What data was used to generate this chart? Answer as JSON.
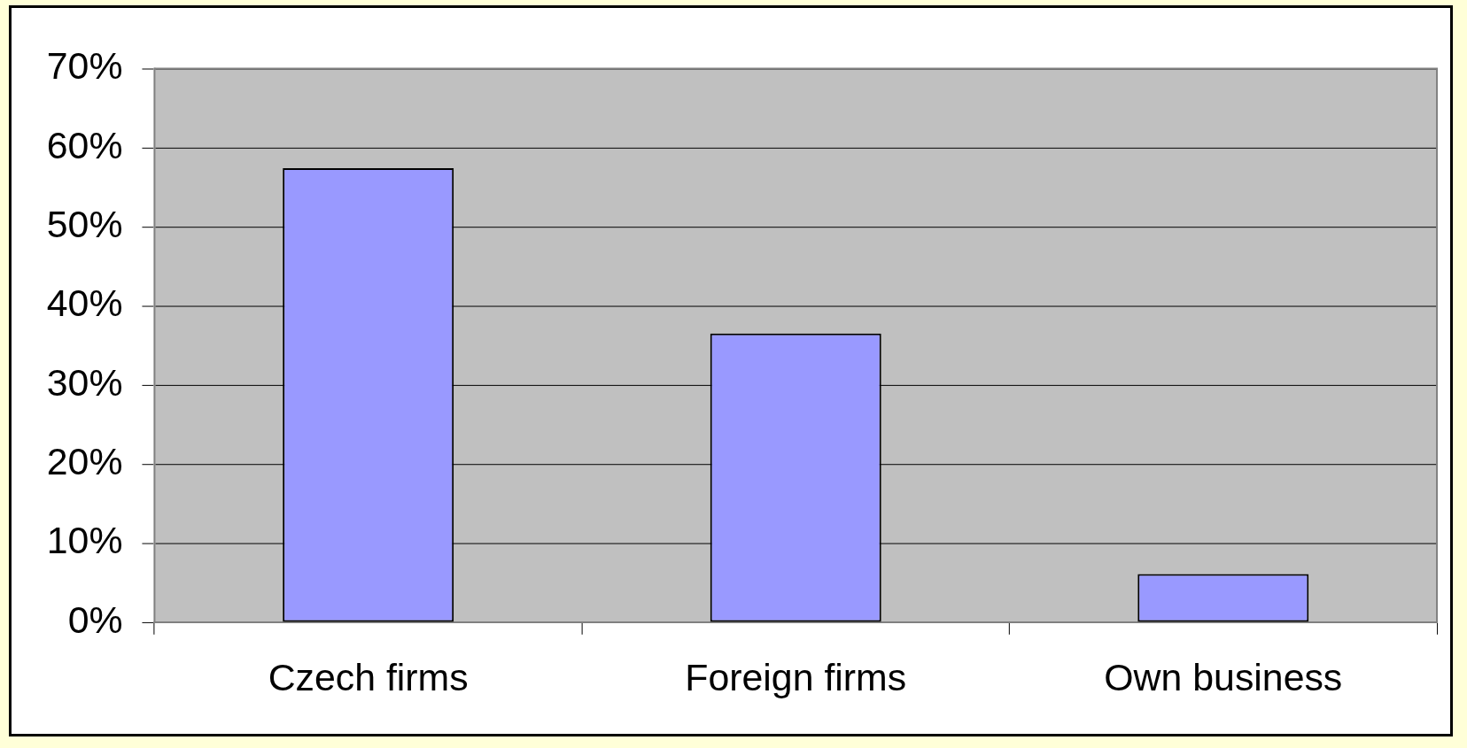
{
  "chart_data": {
    "type": "bar",
    "categories": [
      "Czech firms",
      "Foreign firms",
      "Own business"
    ],
    "values": [
      57.4,
      36.5,
      6.1
    ],
    "color": "#9999ff",
    "ylim": [
      0,
      70
    ],
    "yticks": [
      {
        "value": 0,
        "label": "0%"
      },
      {
        "value": 10,
        "label": "10%"
      },
      {
        "value": 20,
        "label": "20%"
      },
      {
        "value": 30,
        "label": "30%"
      },
      {
        "value": 40,
        "label": "40%"
      },
      {
        "value": 50,
        "label": "50%"
      },
      {
        "value": 60,
        "label": "60%"
      },
      {
        "value": 70,
        "label": "70%"
      }
    ],
    "grid": "y",
    "legend": false
  }
}
